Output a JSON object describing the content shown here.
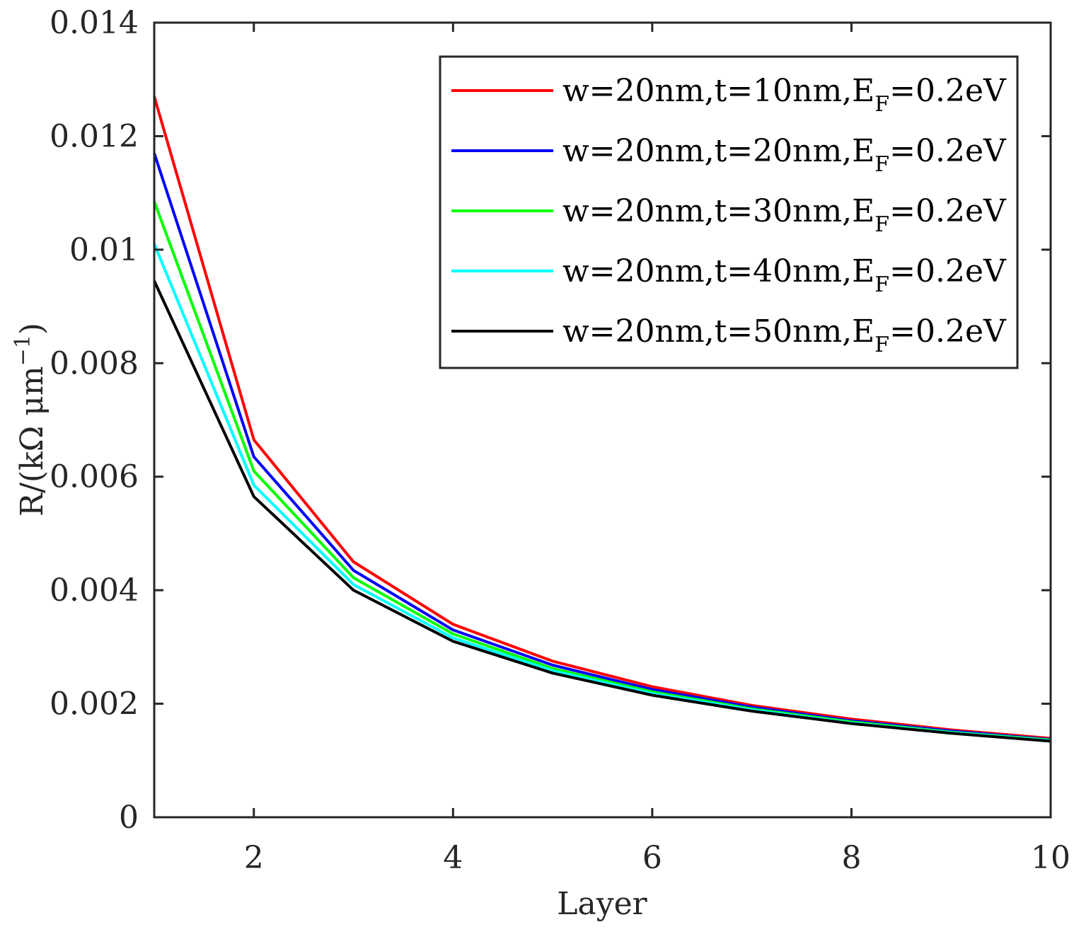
{
  "chart_data": {
    "type": "line",
    "title": "",
    "xlabel": "Layer",
    "ylabel": "R/(kΩ μm",
    "ylabel_exponent": "−1",
    "ylabel_close": ")",
    "xlim": [
      1,
      10
    ],
    "ylim": [
      0,
      0.014
    ],
    "xticks": [
      2,
      4,
      6,
      8,
      10
    ],
    "xtick_labels": [
      "2",
      "4",
      "6",
      "8",
      "10"
    ],
    "yticks": [
      0,
      0.002,
      0.004,
      0.006,
      0.008,
      0.01,
      0.012,
      0.014
    ],
    "ytick_labels": [
      "0",
      "0.002",
      "0.004",
      "0.006",
      "0.008",
      "0.01",
      "0.012",
      "0.014"
    ],
    "grid": false,
    "legend_position": "top-right",
    "x": [
      1,
      2,
      3,
      4,
      5,
      6,
      7,
      8,
      9,
      10
    ],
    "series": [
      {
        "name": "w=20nm,t=10nm,E",
        "name_sub": "F",
        "name_suffix": "=0.2eV",
        "color": "#ff0000",
        "values": [
          0.0127,
          0.00665,
          0.0045,
          0.0034,
          0.00275,
          0.0023,
          0.00197,
          0.00173,
          0.00154,
          0.00139
        ]
      },
      {
        "name": "w=20nm,t=20nm,E",
        "name_sub": "F",
        "name_suffix": "=0.2eV",
        "color": "#0000ff",
        "values": [
          0.0117,
          0.00635,
          0.00435,
          0.0033,
          0.00268,
          0.00225,
          0.00194,
          0.0017,
          0.00152,
          0.00137
        ]
      },
      {
        "name": "w=20nm,t=30nm,E",
        "name_sub": "F",
        "name_suffix": "=0.2eV",
        "color": "#00ff00",
        "values": [
          0.01085,
          0.0061,
          0.00422,
          0.00323,
          0.00262,
          0.00221,
          0.00191,
          0.00168,
          0.0015,
          0.00136
        ]
      },
      {
        "name": "w=20nm,t=40nm,E",
        "name_sub": "F",
        "name_suffix": "=0.2eV",
        "color": "#00ffff",
        "values": [
          0.0101,
          0.00585,
          0.0041,
          0.00316,
          0.00258,
          0.00218,
          0.00189,
          0.00166,
          0.00149,
          0.00135
        ]
      },
      {
        "name": "w=20nm,t=50nm,E",
        "name_sub": "F",
        "name_suffix": "=0.2eV",
        "color": "#000000",
        "values": [
          0.00945,
          0.00565,
          0.004,
          0.0031,
          0.00254,
          0.00215,
          0.00187,
          0.00165,
          0.00148,
          0.00134
        ]
      }
    ]
  }
}
